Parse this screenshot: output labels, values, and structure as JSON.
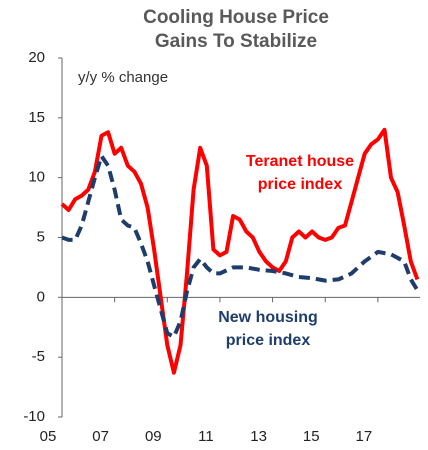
{
  "chart_data": {
    "type": "line",
    "title": [
      "Cooling House Price",
      "Gains To Stabilize"
    ],
    "ylabel": "y/y % change",
    "ylim": [
      -10,
      20
    ],
    "yticks": [
      -10,
      -5,
      0,
      5,
      10,
      15,
      20
    ],
    "xlim": [
      2005,
      2018.6
    ],
    "xticks": [
      {
        "value": 2005,
        "label": "05"
      },
      {
        "value": 2007,
        "label": "07"
      },
      {
        "value": 2009,
        "label": "09"
      },
      {
        "value": 2011,
        "label": "11"
      },
      {
        "value": 2013,
        "label": "13"
      },
      {
        "value": 2015,
        "label": "15"
      },
      {
        "value": 2017,
        "label": "17"
      }
    ],
    "series": [
      {
        "name": [
          "Teranet house",
          "price index"
        ],
        "color": "#ff0000",
        "dash": false,
        "x": [
          2005,
          2005.25,
          2005.5,
          2005.75,
          2006,
          2006.25,
          2006.5,
          2006.75,
          2007,
          2007.25,
          2007.5,
          2007.75,
          2008,
          2008.25,
          2008.5,
          2008.75,
          2009,
          2009.25,
          2009.5,
          2009.75,
          2010,
          2010.25,
          2010.5,
          2010.75,
          2011,
          2011.25,
          2011.5,
          2011.75,
          2012,
          2012.25,
          2012.5,
          2012.75,
          2013,
          2013.25,
          2013.5,
          2013.75,
          2014,
          2014.25,
          2014.5,
          2014.75,
          2015,
          2015.25,
          2015.5,
          2015.75,
          2016,
          2016.25,
          2016.5,
          2016.75,
          2017,
          2017.25,
          2017.5,
          2017.75,
          2018,
          2018.25,
          2018.5
        ],
        "values": [
          7.8,
          7.3,
          8.2,
          8.5,
          9,
          10.5,
          13.5,
          13.8,
          12,
          12.5,
          11,
          10.5,
          9.5,
          7.5,
          4,
          0,
          -4,
          -6.3,
          -4,
          2,
          9,
          12.5,
          11,
          4,
          3.5,
          3.8,
          6.8,
          6.5,
          5.5,
          5,
          3.8,
          3,
          2.5,
          2.2,
          3,
          5,
          5.5,
          5,
          5.5,
          5,
          4.8,
          5,
          5.8,
          6,
          8,
          10,
          12,
          12.8,
          13.2,
          14,
          10,
          8.8,
          6,
          3,
          1.5
        ]
      },
      {
        "name": [
          "New housing",
          "price index"
        ],
        "color": "#1f3d6b",
        "dash": true,
        "x": [
          2005,
          2005.25,
          2005.5,
          2005.75,
          2006,
          2006.25,
          2006.5,
          2006.75,
          2007,
          2007.25,
          2007.5,
          2007.75,
          2008,
          2008.25,
          2008.5,
          2008.75,
          2009,
          2009.25,
          2009.5,
          2009.75,
          2010,
          2010.25,
          2010.5,
          2010.75,
          2011,
          2011.5,
          2012,
          2012.5,
          2013,
          2013.5,
          2014,
          2014.5,
          2015,
          2015.5,
          2016,
          2016.5,
          2017,
          2017.5,
          2018,
          2018.25,
          2018.5
        ],
        "values": [
          5,
          4.8,
          4.8,
          6,
          8,
          10,
          11.8,
          11,
          9,
          6.5,
          6,
          5.8,
          4.5,
          3,
          1,
          -1,
          -3,
          -3.3,
          -2,
          0.5,
          2.5,
          3.2,
          2.5,
          2,
          2,
          2.5,
          2.5,
          2.3,
          2.2,
          2,
          1.7,
          1.6,
          1.4,
          1.5,
          2,
          3,
          3.8,
          3.6,
          3,
          1.5,
          0.6
        ]
      }
    ]
  }
}
